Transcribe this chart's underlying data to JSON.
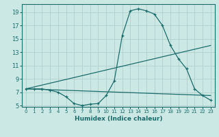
{
  "title": "",
  "xlabel": "Humidex (Indice chaleur)",
  "ylabel": "",
  "bg_color": "#cce8e4",
  "line_color": "#1a6b6b",
  "grid_color": "#aed0cc",
  "xlim": [
    -0.5,
    23.5
  ],
  "ylim": [
    4.8,
    20.2
  ],
  "yticks": [
    5,
    7,
    9,
    11,
    13,
    15,
    17,
    19
  ],
  "xticks": [
    0,
    1,
    2,
    3,
    4,
    5,
    6,
    7,
    8,
    9,
    10,
    11,
    12,
    13,
    14,
    15,
    16,
    17,
    18,
    19,
    20,
    21,
    22,
    23
  ],
  "line1_x": [
    0,
    1,
    2,
    3,
    4,
    5,
    6,
    7,
    8,
    9,
    10,
    11,
    12,
    13,
    14,
    15,
    16,
    17,
    18,
    19,
    20,
    21,
    22,
    23
  ],
  "line1_y": [
    7.5,
    7.5,
    7.5,
    7.3,
    7.0,
    6.3,
    5.3,
    5.0,
    5.2,
    5.3,
    6.5,
    8.7,
    15.5,
    19.2,
    19.5,
    19.2,
    18.7,
    17.0,
    14.0,
    12.0,
    10.5,
    7.5,
    6.5,
    5.8
  ],
  "line2_x": [
    0,
    23
  ],
  "line2_y": [
    7.5,
    14.0
  ],
  "line3_x": [
    0,
    23
  ],
  "line3_y": [
    7.5,
    6.5
  ]
}
